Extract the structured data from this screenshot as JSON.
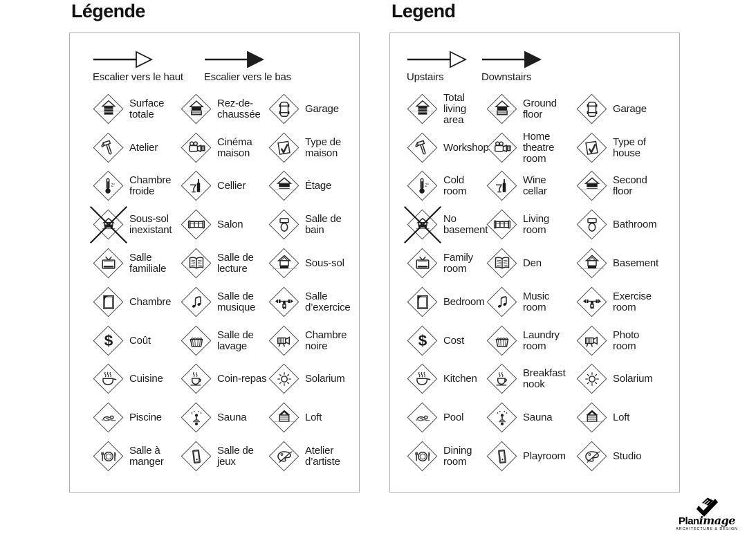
{
  "colors": {
    "ink": "#1d1d1d",
    "panel_border": "#aeaeae",
    "icon_stroke": "#2b2b2b"
  },
  "panels": [
    {
      "id": "fr",
      "title": "Légende",
      "arrows": [
        {
          "icon": "arrow-up-outline-icon",
          "label": "Escalier vers le haut",
          "head": "outline"
        },
        {
          "icon": "arrow-down-filled-icon",
          "label": "Escalier vers le bas",
          "head": "filled"
        }
      ],
      "items": [
        {
          "icon": "stack-house-icon",
          "label": "Surface totale"
        },
        {
          "icon": "ground-floor-icon",
          "label": "Rez-de-chaussée"
        },
        {
          "icon": "garage-car-icon",
          "label": "Garage"
        },
        {
          "icon": "hammer-icon",
          "label": "Atelier"
        },
        {
          "icon": "film-projector-icon",
          "label": "Cinéma maison"
        },
        {
          "icon": "house-check-icon",
          "label": "Type de maison"
        },
        {
          "icon": "thermometer-icon",
          "label": "Chambre froide"
        },
        {
          "icon": "wine-cellar-icon",
          "label": "Cellier"
        },
        {
          "icon": "second-floor-icon",
          "label": "Étage"
        },
        {
          "icon": "no-basement-icon",
          "label": "Sous-sol inexistant"
        },
        {
          "icon": "sofa-icon",
          "label": "Salon"
        },
        {
          "icon": "toilet-icon",
          "label": "Salle de bain"
        },
        {
          "icon": "tv-icon",
          "label": "Salle familiale"
        },
        {
          "icon": "open-book-icon",
          "label": "Salle de lecture"
        },
        {
          "icon": "basement-icon",
          "label": "Sous-sol"
        },
        {
          "icon": "bed-icon",
          "label": "Chambre"
        },
        {
          "icon": "music-notes-icon",
          "label": "Salle de musique"
        },
        {
          "icon": "exercise-weights-icon",
          "label": "Salle d’exercice"
        },
        {
          "icon": "dollar-icon",
          "label": "Coût"
        },
        {
          "icon": "laundry-basket-icon",
          "label": "Salle de lavage"
        },
        {
          "icon": "photo-camera-icon",
          "label": "Chambre noire"
        },
        {
          "icon": "cooking-pot-icon",
          "label": "Cuisine"
        },
        {
          "icon": "coffee-cup-icon",
          "label": "Coin-repas"
        },
        {
          "icon": "sun-icon",
          "label": "Solarium"
        },
        {
          "icon": "swimmer-icon",
          "label": "Piscine"
        },
        {
          "icon": "sauna-icon",
          "label": "Sauna"
        },
        {
          "icon": "loft-icon",
          "label": "Loft"
        },
        {
          "icon": "dining-plate-icon",
          "label": "Salle à manger"
        },
        {
          "icon": "pinball-icon",
          "label": "Salle de jeux"
        },
        {
          "icon": "art-palette-icon",
          "label": "Atelier d’artiste"
        }
      ]
    },
    {
      "id": "en",
      "title": "Legend",
      "arrows": [
        {
          "icon": "arrow-up-outline-icon",
          "label": "Upstairs",
          "head": "outline"
        },
        {
          "icon": "arrow-down-filled-icon",
          "label": "Downstairs",
          "head": "filled"
        }
      ],
      "items": [
        {
          "icon": "stack-house-icon",
          "label": "Total living area"
        },
        {
          "icon": "ground-floor-icon",
          "label": "Ground floor"
        },
        {
          "icon": "garage-car-icon",
          "label": "Garage"
        },
        {
          "icon": "hammer-icon",
          "label": "Workshop"
        },
        {
          "icon": "film-projector-icon",
          "label": "Home theatre room"
        },
        {
          "icon": "house-check-icon",
          "label": "Type of house"
        },
        {
          "icon": "thermometer-icon",
          "label": "Cold room"
        },
        {
          "icon": "wine-cellar-icon",
          "label": "Wine cellar"
        },
        {
          "icon": "second-floor-icon",
          "label": "Second floor"
        },
        {
          "icon": "no-basement-icon",
          "label": "No basement"
        },
        {
          "icon": "sofa-icon",
          "label": "Living room"
        },
        {
          "icon": "toilet-icon",
          "label": "Bathroom"
        },
        {
          "icon": "tv-icon",
          "label": "Family room"
        },
        {
          "icon": "open-book-icon",
          "label": "Den"
        },
        {
          "icon": "basement-icon",
          "label": "Basement"
        },
        {
          "icon": "bed-icon",
          "label": "Bedroom"
        },
        {
          "icon": "music-notes-icon",
          "label": "Music room"
        },
        {
          "icon": "exercise-weights-icon",
          "label": "Exercise room"
        },
        {
          "icon": "dollar-icon",
          "label": "Cost"
        },
        {
          "icon": "laundry-basket-icon",
          "label": "Laundry room"
        },
        {
          "icon": "photo-camera-icon",
          "label": "Photo room"
        },
        {
          "icon": "cooking-pot-icon",
          "label": "Kitchen"
        },
        {
          "icon": "coffee-cup-icon",
          "label": "Breakfast nook"
        },
        {
          "icon": "sun-icon",
          "label": "Solarium"
        },
        {
          "icon": "swimmer-icon",
          "label": "Pool"
        },
        {
          "icon": "sauna-icon",
          "label": "Sauna"
        },
        {
          "icon": "loft-icon",
          "label": "Loft"
        },
        {
          "icon": "dining-plate-icon",
          "label": "Dining room"
        },
        {
          "icon": "pinball-icon",
          "label": "Playroom"
        },
        {
          "icon": "art-palette-icon",
          "label": "Studio"
        }
      ]
    }
  ],
  "logo": {
    "glyph": "planimage-logo-icon",
    "brand_bold": "Plan",
    "brand_italic": "image",
    "tagline": "ARCHITECTURE & DESIGN"
  }
}
